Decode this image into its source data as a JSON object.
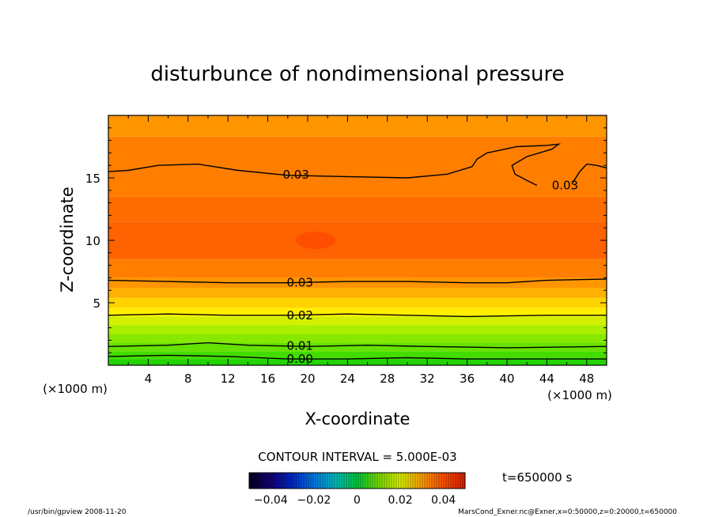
{
  "chart_data": {
    "type": "heatmap",
    "title": "disturbunce of nondimensional pressure",
    "xlabel": "X-coordinate",
    "ylabel": "Z-coordinate",
    "x_unit": "(×1000 m)",
    "x_unit_right": "(×1000 m)",
    "xlim": [
      0,
      50
    ],
    "ylim": [
      0,
      20
    ],
    "x_ticks": [
      4,
      8,
      12,
      16,
      20,
      24,
      28,
      32,
      36,
      40,
      44,
      48
    ],
    "y_ticks": [
      5,
      10,
      15
    ],
    "contour_interval_label": "CONTOUR INTERVAL = 5.000E-03",
    "time_label": "t=650000 s",
    "colorbar": {
      "range": [
        -0.05,
        0.05
      ],
      "tick_values": [
        -0.04,
        -0.02,
        0,
        0.02,
        0.04
      ],
      "tick_labels": [
        "−0.04",
        "−0.02",
        "0",
        "0.02",
        "0.04"
      ]
    },
    "bands": [
      {
        "z0": 0.0,
        "z1": 0.5,
        "color": "#22d400"
      },
      {
        "z0": 0.5,
        "z1": 1.1,
        "color": "#44dc00"
      },
      {
        "z0": 1.1,
        "z1": 1.8,
        "color": "#66e200"
      },
      {
        "z0": 1.8,
        "z1": 2.5,
        "color": "#88e800"
      },
      {
        "z0": 2.5,
        "z1": 3.2,
        "color": "#aaee00"
      },
      {
        "z0": 3.2,
        "z1": 3.9,
        "color": "#d2f000"
      },
      {
        "z0": 3.9,
        "z1": 4.6,
        "color": "#ffee00"
      },
      {
        "z0": 4.6,
        "z1": 5.4,
        "color": "#ffd200"
      },
      {
        "z0": 5.4,
        "z1": 6.2,
        "color": "#ffb000"
      },
      {
        "z0": 6.2,
        "z1": 7.0,
        "color": "#ff9600"
      },
      {
        "z0": 7.0,
        "z1": 8.5,
        "color": "#ff7e00"
      },
      {
        "z0": 8.5,
        "z1": 11.5,
        "color": "#ff6200"
      },
      {
        "z0": 11.5,
        "z1": 13.5,
        "color": "#ff6c00"
      },
      {
        "z0": 13.5,
        "z1": 18.3,
        "color": "#ff7e00"
      },
      {
        "z0": 18.3,
        "z1": 20.0,
        "color": "#ff9600"
      }
    ],
    "high_blob": {
      "x": 20.8,
      "z": 10.0,
      "rx": 2.0,
      "rz": 0.7,
      "color": "#ff4e00"
    },
    "contours": [
      {
        "level": "0.00",
        "label": "0.00",
        "label_x": 17.9,
        "points": [
          [
            0,
            0.7
          ],
          [
            6,
            0.8
          ],
          [
            12,
            0.7
          ],
          [
            18,
            0.5
          ],
          [
            24,
            0.5
          ],
          [
            30,
            0.6
          ],
          [
            36,
            0.5
          ],
          [
            44,
            0.5
          ],
          [
            50,
            0.5
          ]
        ]
      },
      {
        "level": "0.01",
        "label": "0.01",
        "label_x": 17.9,
        "points": [
          [
            0,
            1.5
          ],
          [
            6,
            1.6
          ],
          [
            10,
            1.8
          ],
          [
            14,
            1.6
          ],
          [
            20,
            1.5
          ],
          [
            26,
            1.6
          ],
          [
            32,
            1.5
          ],
          [
            40,
            1.4
          ],
          [
            50,
            1.5
          ]
        ]
      },
      {
        "level": "0.02",
        "label": "0.02",
        "label_x": 17.9,
        "points": [
          [
            0,
            4.0
          ],
          [
            6,
            4.1
          ],
          [
            12,
            4.0
          ],
          [
            18,
            4.0
          ],
          [
            24,
            4.1
          ],
          [
            30,
            4.0
          ],
          [
            36,
            3.9
          ],
          [
            44,
            4.0
          ],
          [
            50,
            4.0
          ]
        ]
      },
      {
        "level": "0.03",
        "label": "0.03",
        "label_x": 17.9,
        "points": [
          [
            0,
            6.8
          ],
          [
            6,
            6.7
          ],
          [
            12,
            6.6
          ],
          [
            18,
            6.6
          ],
          [
            24,
            6.7
          ],
          [
            30,
            6.7
          ],
          [
            36,
            6.6
          ],
          [
            40,
            6.6
          ],
          [
            44,
            6.8
          ],
          [
            50,
            6.9
          ]
        ]
      },
      {
        "level": "0.03",
        "label": "0.03",
        "label_x": 17.5,
        "points": [
          [
            0,
            15.5
          ],
          [
            2,
            15.6
          ],
          [
            5,
            16.0
          ],
          [
            9,
            16.1
          ],
          [
            13,
            15.6
          ],
          [
            18,
            15.2
          ],
          [
            24,
            15.1
          ],
          [
            30,
            15.0
          ],
          [
            34,
            15.3
          ],
          [
            36.5,
            15.9
          ],
          [
            37,
            16.5
          ],
          [
            38,
            17.0
          ],
          [
            41,
            17.5
          ],
          [
            44,
            17.6
          ],
          [
            45.2,
            17.7
          ],
          [
            44.5,
            17.3
          ],
          [
            42,
            16.7
          ],
          [
            40.5,
            16.0
          ],
          [
            40.8,
            15.3
          ],
          [
            42,
            14.8
          ],
          [
            43,
            14.4
          ]
        ]
      },
      {
        "level": "0.03",
        "label": "0.03",
        "label_x": 44.5,
        "label_z": 14.4,
        "points": [
          [
            46.5,
            14.5
          ],
          [
            47.3,
            15.5
          ],
          [
            48,
            16.1
          ],
          [
            49,
            16.0
          ],
          [
            50,
            15.8
          ]
        ]
      }
    ],
    "footer_left": "/usr/bin/gpview   2008-11-20",
    "footer_right": "MarsCond_Exner.nc@Exner,x=0:50000,z=0:20000,t=650000"
  }
}
